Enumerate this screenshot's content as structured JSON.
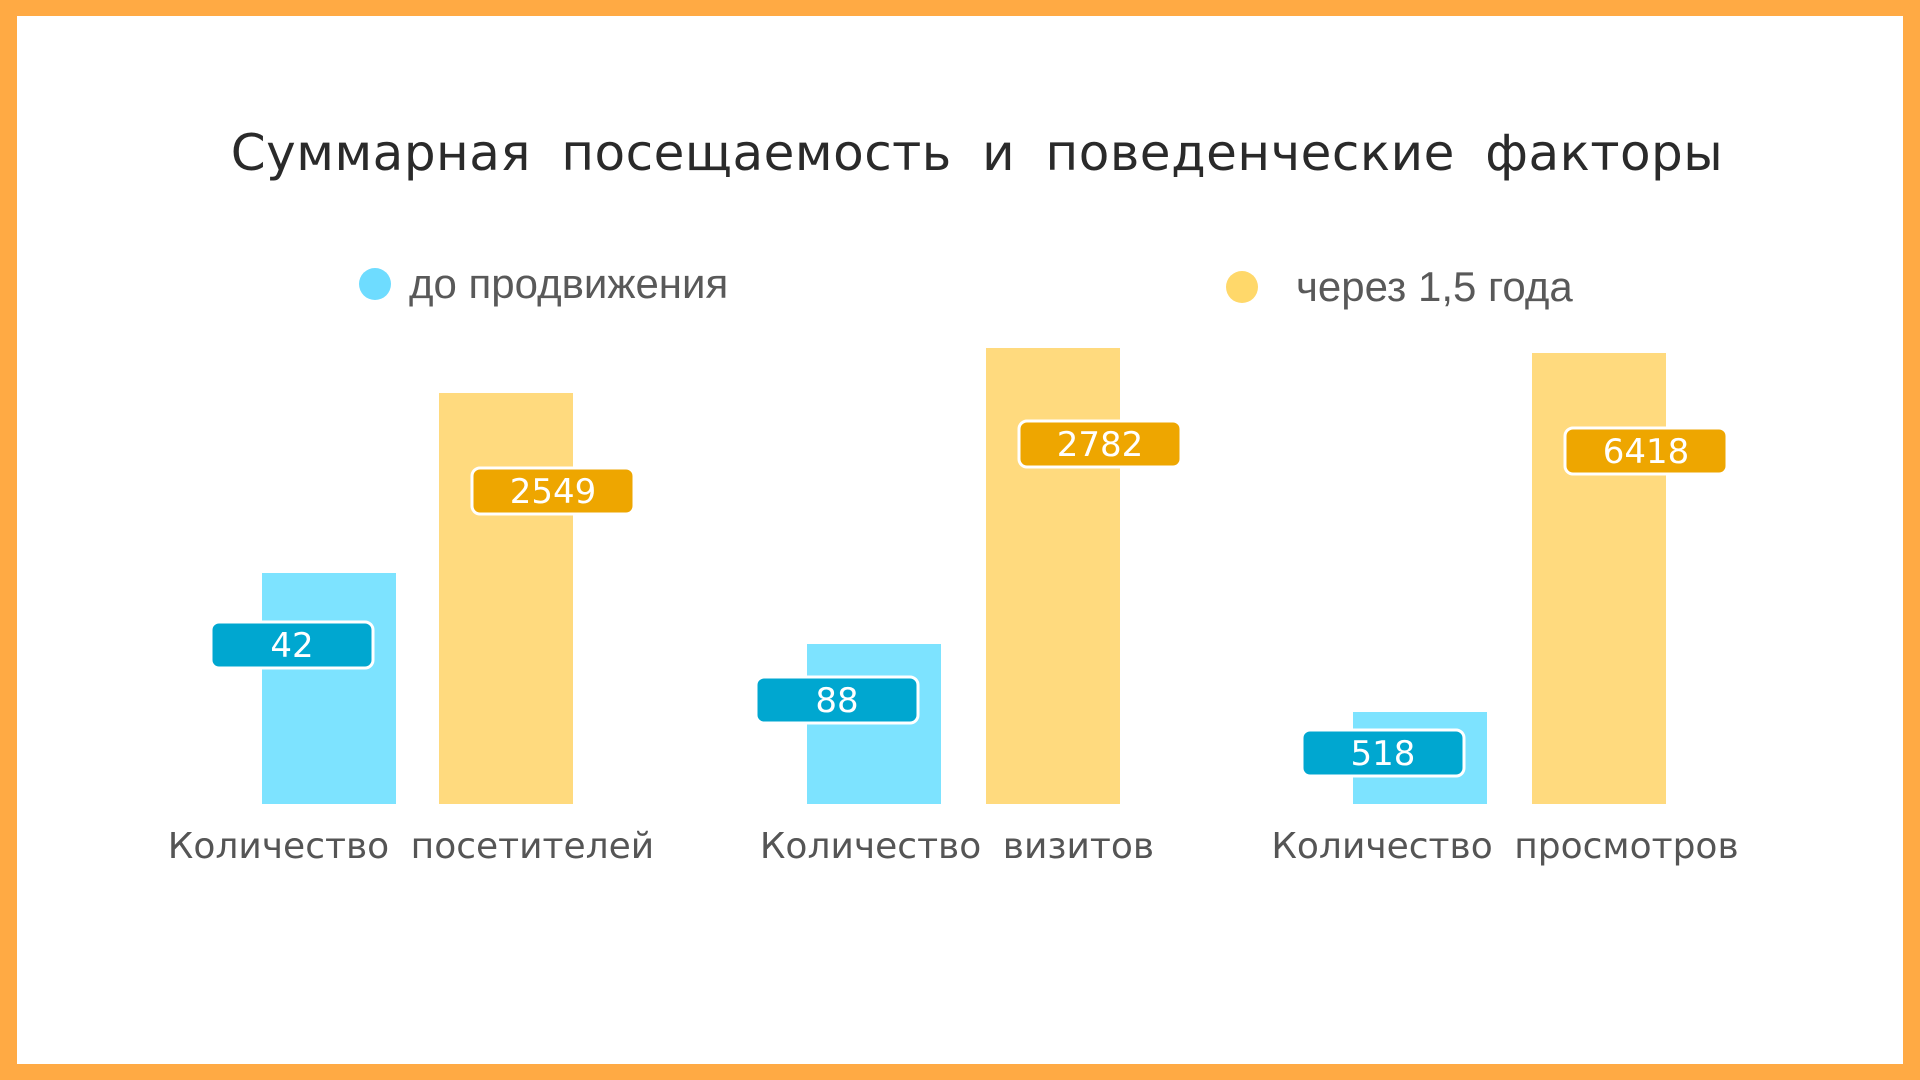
{
  "chart_data": {
    "type": "bar",
    "title": "Суммарная посещаемость и поведенческие факторы",
    "categories": [
      "Количество посетителей",
      "Количество визитов",
      "Количество просмотров"
    ],
    "series": [
      {
        "name": "до продвижения",
        "values": [
          42,
          88,
          518
        ],
        "color": "#7DE3FF",
        "label_color": "#00A7D0",
        "legend_color": "#6EDCFF"
      },
      {
        "name": "через 1,5 года",
        "values": [
          2549,
          2782,
          6418
        ],
        "color": "#FFDA7E",
        "label_color": "#EEA600",
        "legend_color": "#FFD86A"
      }
    ],
    "legend": "top",
    "grid": false,
    "axes_visible": false,
    "note": "bars are not drawn to a common scale"
  }
}
